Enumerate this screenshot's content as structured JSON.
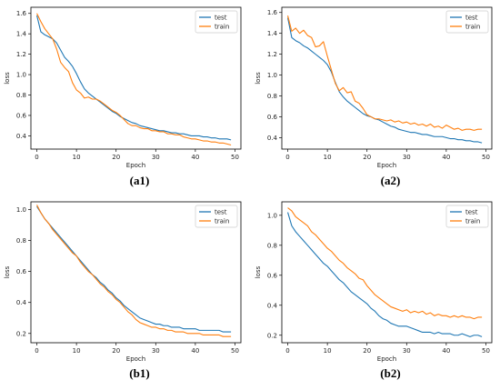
{
  "colors": {
    "test": "#1f77b4",
    "train": "#ff7f0e"
  },
  "chart_data": [
    {
      "panel": "(a1)",
      "type": "line",
      "caption_parts": [
        "(",
        "a1",
        ")"
      ],
      "xlabel": "Epoch",
      "ylabel": "loss",
      "xlim": [
        -1.5,
        51.5
      ],
      "ylim": [
        0.27,
        1.66
      ],
      "xticks": [
        0,
        10,
        20,
        30,
        40,
        50
      ],
      "yticks": [
        0.4,
        0.6,
        0.8,
        1.0,
        1.2,
        1.4,
        1.6
      ],
      "legend_position": "top-right",
      "grid": false,
      "series": [
        {
          "name": "test",
          "x": [
            0,
            1,
            2,
            3,
            4,
            5,
            6,
            7,
            8,
            9,
            10,
            11,
            12,
            13,
            14,
            15,
            16,
            17,
            18,
            19,
            20,
            21,
            22,
            23,
            24,
            25,
            26,
            27,
            28,
            29,
            30,
            31,
            32,
            33,
            34,
            35,
            36,
            37,
            38,
            39,
            40,
            41,
            42,
            43,
            44,
            45,
            46,
            47,
            48,
            49
          ],
          "values": [
            1.58,
            1.42,
            1.39,
            1.37,
            1.35,
            1.31,
            1.24,
            1.17,
            1.13,
            1.08,
            1.01,
            0.93,
            0.86,
            0.82,
            0.79,
            0.76,
            0.73,
            0.7,
            0.67,
            0.64,
            0.62,
            0.59,
            0.57,
            0.55,
            0.53,
            0.52,
            0.5,
            0.49,
            0.48,
            0.47,
            0.46,
            0.45,
            0.45,
            0.44,
            0.43,
            0.43,
            0.42,
            0.42,
            0.41,
            0.4,
            0.4,
            0.4,
            0.39,
            0.39,
            0.38,
            0.38,
            0.37,
            0.37,
            0.37,
            0.36
          ]
        },
        {
          "name": "train",
          "x": [
            0,
            1,
            2,
            3,
            4,
            5,
            6,
            7,
            8,
            9,
            10,
            11,
            12,
            13,
            14,
            15,
            16,
            17,
            18,
            19,
            20,
            21,
            22,
            23,
            24,
            25,
            26,
            27,
            28,
            29,
            30,
            31,
            32,
            33,
            34,
            35,
            36,
            37,
            38,
            39,
            40,
            41,
            42,
            43,
            44,
            45,
            46,
            47,
            48,
            49
          ],
          "values": [
            1.6,
            1.52,
            1.45,
            1.4,
            1.35,
            1.25,
            1.12,
            1.07,
            1.03,
            0.92,
            0.85,
            0.82,
            0.77,
            0.78,
            0.76,
            0.76,
            0.74,
            0.71,
            0.68,
            0.65,
            0.63,
            0.6,
            0.56,
            0.52,
            0.5,
            0.5,
            0.48,
            0.47,
            0.47,
            0.45,
            0.45,
            0.44,
            0.44,
            0.42,
            0.42,
            0.41,
            0.41,
            0.39,
            0.38,
            0.37,
            0.37,
            0.36,
            0.35,
            0.35,
            0.34,
            0.34,
            0.33,
            0.33,
            0.32,
            0.31
          ]
        }
      ]
    },
    {
      "panel": "(a2)",
      "type": "line",
      "caption_parts": [
        "(",
        "a2",
        ")"
      ],
      "xlabel": "Epoch",
      "ylabel": "loss",
      "xlim": [
        -1.5,
        51.5
      ],
      "ylim": [
        0.29,
        1.65
      ],
      "xticks": [
        0,
        10,
        20,
        30,
        40,
        50
      ],
      "yticks": [
        0.4,
        0.6,
        0.8,
        1.0,
        1.2,
        1.4,
        1.6
      ],
      "legend_position": "top-right",
      "grid": false,
      "series": [
        {
          "name": "test",
          "x": [
            0,
            1,
            2,
            3,
            4,
            5,
            6,
            7,
            8,
            9,
            10,
            11,
            12,
            13,
            14,
            15,
            16,
            17,
            18,
            19,
            20,
            21,
            22,
            23,
            24,
            25,
            26,
            27,
            28,
            29,
            30,
            31,
            32,
            33,
            34,
            35,
            36,
            37,
            38,
            39,
            40,
            41,
            42,
            43,
            44,
            45,
            46,
            47,
            48,
            49
          ],
          "values": [
            1.55,
            1.36,
            1.33,
            1.31,
            1.28,
            1.26,
            1.23,
            1.2,
            1.17,
            1.14,
            1.1,
            1.03,
            0.93,
            0.84,
            0.79,
            0.75,
            0.72,
            0.69,
            0.66,
            0.63,
            0.61,
            0.6,
            0.58,
            0.57,
            0.55,
            0.53,
            0.51,
            0.5,
            0.48,
            0.47,
            0.46,
            0.45,
            0.45,
            0.44,
            0.43,
            0.43,
            0.42,
            0.41,
            0.41,
            0.41,
            0.4,
            0.39,
            0.39,
            0.38,
            0.38,
            0.37,
            0.37,
            0.36,
            0.36,
            0.35
          ]
        },
        {
          "name": "train",
          "x": [
            0,
            1,
            2,
            3,
            4,
            5,
            6,
            7,
            8,
            9,
            10,
            11,
            12,
            13,
            14,
            15,
            16,
            17,
            18,
            19,
            20,
            21,
            22,
            23,
            24,
            25,
            26,
            27,
            28,
            29,
            30,
            31,
            32,
            33,
            34,
            35,
            36,
            37,
            38,
            39,
            40,
            41,
            42,
            43,
            44,
            45,
            46,
            47,
            48,
            49
          ],
          "values": [
            1.57,
            1.42,
            1.45,
            1.4,
            1.43,
            1.38,
            1.36,
            1.27,
            1.28,
            1.32,
            1.18,
            1.05,
            0.92,
            0.85,
            0.88,
            0.83,
            0.84,
            0.75,
            0.73,
            0.68,
            0.62,
            0.6,
            0.58,
            0.58,
            0.57,
            0.56,
            0.57,
            0.55,
            0.56,
            0.54,
            0.55,
            0.53,
            0.54,
            0.52,
            0.53,
            0.51,
            0.53,
            0.5,
            0.51,
            0.49,
            0.52,
            0.5,
            0.48,
            0.49,
            0.47,
            0.48,
            0.48,
            0.47,
            0.48,
            0.48
          ]
        }
      ]
    },
    {
      "panel": "(b1)",
      "type": "line",
      "caption_parts": [
        "(",
        "b1",
        ")"
      ],
      "xlabel": "Epoch",
      "ylabel": "loss",
      "xlim": [
        -1.5,
        51.5
      ],
      "ylim": [
        0.14,
        1.05
      ],
      "xticks": [
        0,
        10,
        20,
        30,
        40,
        50
      ],
      "yticks": [
        0.2,
        0.4,
        0.6,
        0.8,
        1.0
      ],
      "legend_position": "top-right",
      "grid": false,
      "series": [
        {
          "name": "test",
          "x": [
            0,
            1,
            2,
            3,
            4,
            5,
            6,
            7,
            8,
            9,
            10,
            11,
            12,
            13,
            14,
            15,
            16,
            17,
            18,
            19,
            20,
            21,
            22,
            23,
            24,
            25,
            26,
            27,
            28,
            29,
            30,
            31,
            32,
            33,
            34,
            35,
            36,
            37,
            38,
            39,
            40,
            41,
            42,
            43,
            44,
            45,
            46,
            47,
            48,
            49
          ],
          "values": [
            1.02,
            0.98,
            0.94,
            0.91,
            0.88,
            0.85,
            0.82,
            0.79,
            0.76,
            0.73,
            0.7,
            0.67,
            0.64,
            0.61,
            0.58,
            0.56,
            0.53,
            0.51,
            0.48,
            0.46,
            0.43,
            0.41,
            0.38,
            0.36,
            0.34,
            0.32,
            0.3,
            0.29,
            0.28,
            0.27,
            0.26,
            0.26,
            0.25,
            0.25,
            0.24,
            0.24,
            0.24,
            0.23,
            0.23,
            0.23,
            0.23,
            0.22,
            0.22,
            0.22,
            0.22,
            0.22,
            0.22,
            0.21,
            0.21,
            0.21
          ]
        },
        {
          "name": "train",
          "x": [
            0,
            1,
            2,
            3,
            4,
            5,
            6,
            7,
            8,
            9,
            10,
            11,
            12,
            13,
            14,
            15,
            16,
            17,
            18,
            19,
            20,
            21,
            22,
            23,
            24,
            25,
            26,
            27,
            28,
            29,
            30,
            31,
            32,
            33,
            34,
            35,
            36,
            37,
            38,
            39,
            40,
            41,
            42,
            43,
            44,
            45,
            46,
            47,
            48,
            49
          ],
          "values": [
            1.03,
            0.98,
            0.94,
            0.91,
            0.87,
            0.84,
            0.81,
            0.78,
            0.75,
            0.72,
            0.7,
            0.66,
            0.63,
            0.6,
            0.58,
            0.55,
            0.52,
            0.5,
            0.47,
            0.45,
            0.42,
            0.4,
            0.37,
            0.34,
            0.32,
            0.29,
            0.27,
            0.26,
            0.25,
            0.24,
            0.24,
            0.23,
            0.23,
            0.22,
            0.22,
            0.21,
            0.21,
            0.21,
            0.2,
            0.2,
            0.2,
            0.2,
            0.19,
            0.19,
            0.19,
            0.19,
            0.19,
            0.18,
            0.18,
            0.18
          ]
        }
      ]
    },
    {
      "panel": "(b2)",
      "type": "line",
      "caption_parts": [
        "(",
        "b2",
        ")"
      ],
      "xlabel": "Epoch",
      "ylabel": "loss",
      "xlim": [
        -1.5,
        51.5
      ],
      "ylim": [
        0.15,
        1.09
      ],
      "xticks": [
        0,
        10,
        20,
        30,
        40,
        50
      ],
      "yticks": [
        0.2,
        0.4,
        0.6,
        0.8,
        1.0
      ],
      "legend_position": "top-right",
      "grid": false,
      "series": [
        {
          "name": "test",
          "x": [
            0,
            1,
            2,
            3,
            4,
            5,
            6,
            7,
            8,
            9,
            10,
            11,
            12,
            13,
            14,
            15,
            16,
            17,
            18,
            19,
            20,
            21,
            22,
            23,
            24,
            25,
            26,
            27,
            28,
            29,
            30,
            31,
            32,
            33,
            34,
            35,
            36,
            37,
            38,
            39,
            40,
            41,
            42,
            43,
            44,
            45,
            46,
            47,
            48,
            49
          ],
          "values": [
            1.02,
            0.93,
            0.89,
            0.86,
            0.83,
            0.8,
            0.77,
            0.74,
            0.71,
            0.68,
            0.66,
            0.63,
            0.6,
            0.57,
            0.55,
            0.52,
            0.49,
            0.47,
            0.45,
            0.43,
            0.41,
            0.38,
            0.36,
            0.33,
            0.31,
            0.3,
            0.28,
            0.27,
            0.26,
            0.26,
            0.26,
            0.25,
            0.24,
            0.23,
            0.22,
            0.22,
            0.22,
            0.21,
            0.22,
            0.21,
            0.21,
            0.21,
            0.2,
            0.2,
            0.21,
            0.2,
            0.19,
            0.2,
            0.2,
            0.19
          ]
        },
        {
          "name": "train",
          "x": [
            0,
            1,
            2,
            3,
            4,
            5,
            6,
            7,
            8,
            9,
            10,
            11,
            12,
            13,
            14,
            15,
            16,
            17,
            18,
            19,
            20,
            21,
            22,
            23,
            24,
            25,
            26,
            27,
            28,
            29,
            30,
            31,
            32,
            33,
            34,
            35,
            36,
            37,
            38,
            39,
            40,
            41,
            42,
            43,
            44,
            45,
            46,
            47,
            48,
            49
          ],
          "values": [
            1.05,
            1.03,
            0.99,
            0.97,
            0.95,
            0.93,
            0.89,
            0.87,
            0.84,
            0.81,
            0.78,
            0.76,
            0.73,
            0.7,
            0.68,
            0.65,
            0.63,
            0.61,
            0.58,
            0.57,
            0.53,
            0.5,
            0.47,
            0.45,
            0.43,
            0.41,
            0.39,
            0.38,
            0.37,
            0.36,
            0.37,
            0.35,
            0.36,
            0.35,
            0.36,
            0.34,
            0.35,
            0.33,
            0.34,
            0.33,
            0.33,
            0.32,
            0.33,
            0.32,
            0.33,
            0.32,
            0.32,
            0.31,
            0.32,
            0.32
          ]
        }
      ]
    }
  ]
}
